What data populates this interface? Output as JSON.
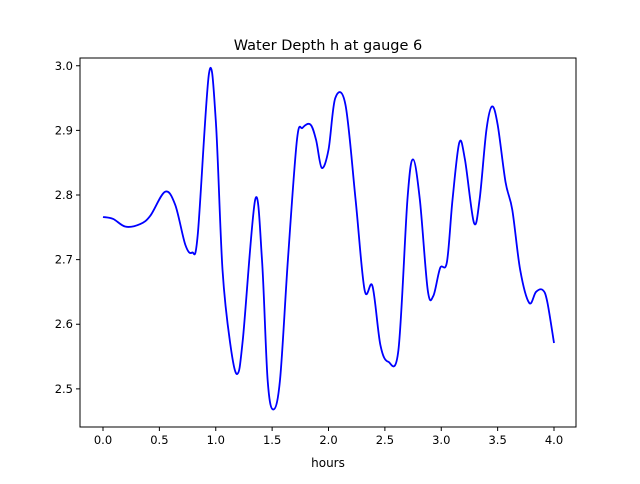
{
  "chart_data": {
    "type": "line",
    "title": "Water Depth h at gauge 6",
    "xlabel": "hours",
    "ylabel": "",
    "xlim": [
      -0.204,
      4.195
    ],
    "ylim": [
      2.441,
      3.012
    ],
    "xticks": [
      0.0,
      0.5,
      1.0,
      1.5,
      2.0,
      2.5,
      3.0,
      3.5,
      4.0
    ],
    "xtick_labels": [
      "0.0",
      "0.5",
      "1.0",
      "1.5",
      "2.0",
      "2.5",
      "3.0",
      "3.5",
      "4.0"
    ],
    "yticks": [
      2.5,
      2.6,
      2.7,
      2.8,
      2.9,
      3.0
    ],
    "ytick_labels": [
      "2.5",
      "2.6",
      "2.7",
      "2.8",
      "2.9",
      "3.0"
    ],
    "grid": false,
    "series": [
      {
        "name": "h",
        "color": "#0000ff",
        "x": [
          0.0,
          0.09,
          0.2,
          0.33,
          0.42,
          0.55,
          0.64,
          0.73,
          0.79,
          0.84,
          0.94,
          1.0,
          1.06,
          1.13,
          1.19,
          1.24,
          1.35,
          1.41,
          1.46,
          1.51,
          1.57,
          1.64,
          1.72,
          1.77,
          1.84,
          1.89,
          1.94,
          2.0,
          2.06,
          2.15,
          2.24,
          2.32,
          2.39,
          2.46,
          2.53,
          2.62,
          2.7,
          2.75,
          2.81,
          2.88,
          2.93,
          2.99,
          3.05,
          3.1,
          3.16,
          3.21,
          3.29,
          3.34,
          3.4,
          3.45,
          3.5,
          3.57,
          3.63,
          3.7,
          3.78,
          3.84,
          3.9,
          3.94,
          4.0
        ],
        "y": [
          2.766,
          2.763,
          2.751,
          2.755,
          2.768,
          2.805,
          2.785,
          2.723,
          2.711,
          2.738,
          2.988,
          2.916,
          2.684,
          2.568,
          2.523,
          2.576,
          2.793,
          2.7,
          2.514,
          2.468,
          2.514,
          2.7,
          2.885,
          2.904,
          2.909,
          2.885,
          2.842,
          2.87,
          2.95,
          2.94,
          2.793,
          2.653,
          2.659,
          2.568,
          2.542,
          2.56,
          2.793,
          2.855,
          2.793,
          2.653,
          2.644,
          2.687,
          2.696,
          2.793,
          2.881,
          2.855,
          2.757,
          2.793,
          2.9,
          2.937,
          2.909,
          2.82,
          2.777,
          2.684,
          2.633,
          2.65,
          2.653,
          2.635,
          2.571
        ]
      }
    ]
  }
}
